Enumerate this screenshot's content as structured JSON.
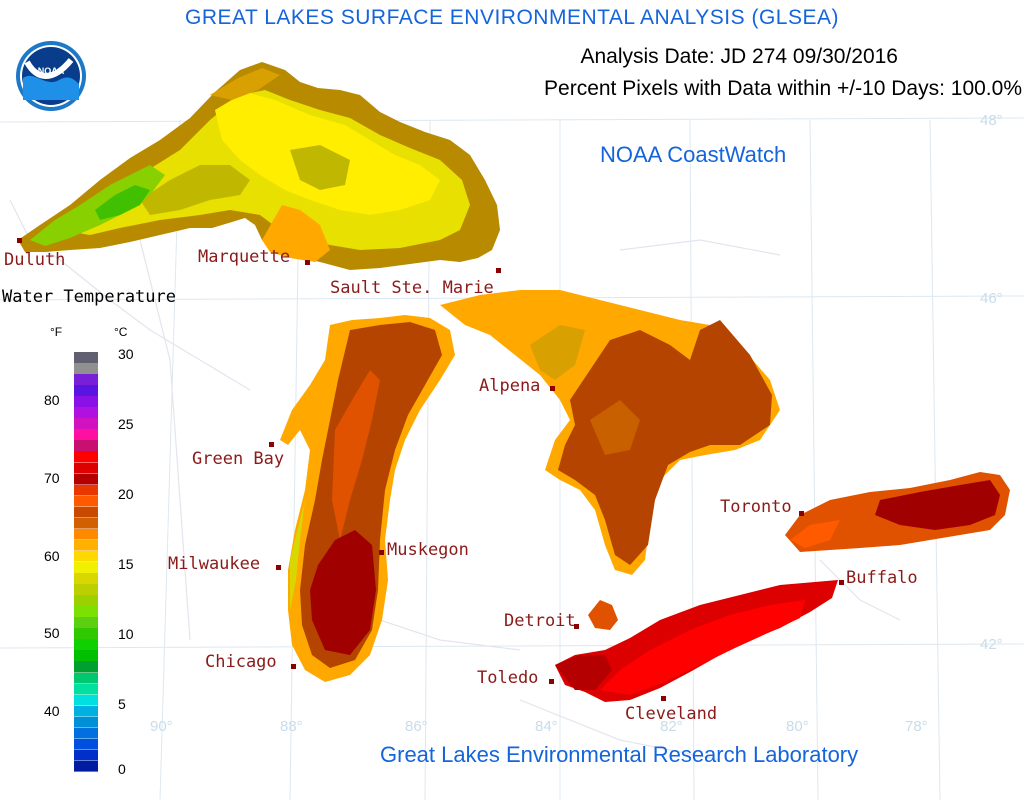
{
  "header": {
    "title": "GREAT LAKES SURFACE ENVIRONMENTAL ANALYSIS (GLSEA)",
    "analysis_date": "Analysis Date:  JD 274 09/30/2016",
    "percent_pixels": "Percent Pixels with Data within +/-10 Days: 100.0%",
    "coastwatch": "NOAA CoastWatch",
    "footer": "Great Lakes Environmental Research Laboratory"
  },
  "logo": {
    "text": "NOAA"
  },
  "cities": {
    "duluth": "Duluth",
    "marquette": "Marquette",
    "sault": "Sault Ste. Marie",
    "green_bay": "Green Bay",
    "alpena": "Alpena",
    "milwaukee": "Milwaukee",
    "muskegon": "Muskegon",
    "chicago": "Chicago",
    "toronto": "Toronto",
    "buffalo": "Buffalo",
    "detroit": "Detroit",
    "toledo": "Toledo",
    "cleveland": "Cleveland"
  },
  "legend": {
    "title": "Water Temperature",
    "unit_f": "°F",
    "unit_c": "°C",
    "f_ticks": [
      "80",
      "70",
      "60",
      "50",
      "40"
    ],
    "c_ticks": [
      "30",
      "25",
      "20",
      "15",
      "10",
      "5",
      "0"
    ],
    "colors": [
      "#606070",
      "#909090",
      "#7a1fd8",
      "#5a14e0",
      "#8a10e8",
      "#b010e0",
      "#d012c0",
      "#ff10a0",
      "#c81070",
      "#ff0000",
      "#dc0000",
      "#b40000",
      "#e83800",
      "#ff5a00",
      "#c84a00",
      "#d06000",
      "#ff8a00",
      "#ffb000",
      "#ffd800",
      "#f0f000",
      "#d8d800",
      "#bcd000",
      "#9cd000",
      "#7ce000",
      "#5cd010",
      "#30c800",
      "#10d000",
      "#00c000",
      "#00a030",
      "#00c870",
      "#00e0a0",
      "#00e0e0",
      "#00b0e0",
      "#0090d8",
      "#0070e0",
      "#0050e0",
      "#0030c8",
      "#001ca0"
    ]
  },
  "grid_labels": {
    "lat_48": "48°",
    "lat_46": "46°",
    "lat_42": "42°",
    "lon_90": "90°",
    "lon_88": "88°",
    "lon_86": "86°",
    "lon_84": "84°",
    "lon_82": "82°",
    "lon_80": "80°",
    "lon_78": "78°"
  }
}
